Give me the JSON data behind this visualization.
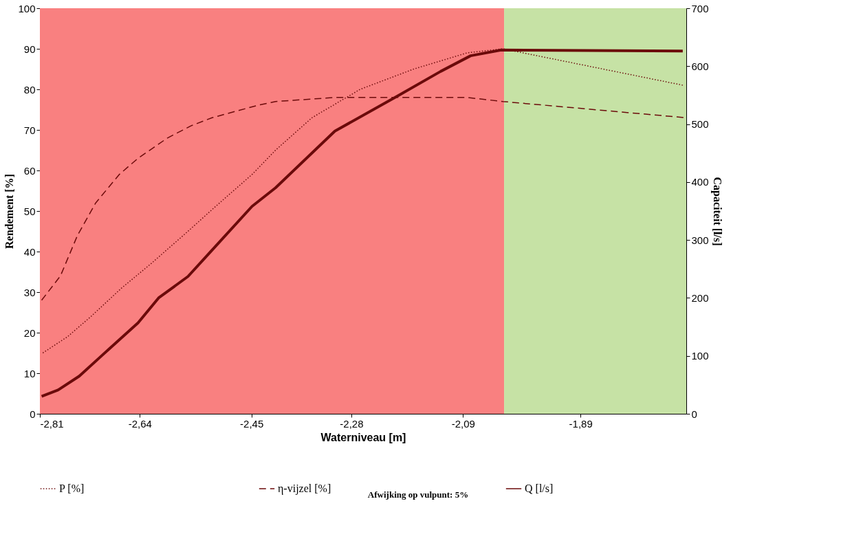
{
  "chart_data": {
    "type": "line",
    "xlabel": "Waterniveau [m]",
    "ylabel": "Rendement [%]",
    "y2label": "Capaciteit [l/s]",
    "xlim": [
      -2.81,
      -1.71
    ],
    "xticks": [
      {
        "value": -2.81,
        "label": "-2,81"
      },
      {
        "value": -2.64,
        "label": "-2,64"
      },
      {
        "value": -2.45,
        "label": "-2,45"
      },
      {
        "value": -2.28,
        "label": "-2,28"
      },
      {
        "value": -2.09,
        "label": "-2,09"
      },
      {
        "value": -1.89,
        "label": "-1,89"
      }
    ],
    "ylim": [
      0,
      100
    ],
    "yticks": [
      0,
      10,
      20,
      30,
      40,
      50,
      60,
      70,
      80,
      90,
      100
    ],
    "y2lim": [
      0,
      700
    ],
    "y2ticks": [
      0,
      100,
      200,
      300,
      400,
      500,
      600,
      700
    ],
    "legend": "bottom",
    "marker": "none",
    "series": [
      {
        "name": "P [%]",
        "color": "#6b0a0a",
        "line_style": "dotted",
        "x": [
          -2.805,
          -2.763,
          -2.723,
          -2.671,
          -2.621,
          -2.558,
          -2.512,
          -2.449,
          -2.409,
          -2.347,
          -2.265,
          -2.174,
          -2.083,
          -2.022,
          -1.715
        ],
        "values": [
          15,
          19,
          24,
          31,
          37,
          45,
          51,
          59,
          65,
          73,
          80,
          85,
          89,
          90,
          81
        ]
      },
      {
        "name": "η-vijzel [%]",
        "color": "#6b0a0a",
        "line_style": "dashed",
        "x": [
          -2.807,
          -2.775,
          -2.746,
          -2.715,
          -2.675,
          -2.643,
          -2.593,
          -2.553,
          -2.517,
          -2.441,
          -2.409,
          -2.308,
          -2.174,
          -2.083,
          -2.022,
          -1.71
        ],
        "values": [
          28,
          34,
          44,
          52,
          59,
          63,
          68,
          71,
          73,
          76,
          77,
          78,
          78,
          78,
          77,
          73
        ]
      },
      {
        "name": "Q [l/s]",
        "color": "#6b0a0a",
        "line_style": "solid",
        "axis": "y2",
        "x": [
          -2.807,
          -2.779,
          -2.743,
          -2.704,
          -2.643,
          -2.608,
          -2.558,
          -2.521,
          -2.449,
          -2.409,
          -2.308,
          -2.202,
          -2.128,
          -2.077,
          -2.025,
          -1.716
        ],
        "values": [
          30,
          41,
          65,
          101,
          157,
          200,
          237,
          278,
          358,
          390,
          488,
          548,
          591,
          618,
          628,
          626
        ]
      }
    ],
    "bands": [
      {
        "axis": "x",
        "from": -2.81,
        "to": -2.02,
        "color": "#f98080"
      },
      {
        "axis": "x",
        "from": -2.02,
        "to": -1.71,
        "color": "#c6e2a5"
      }
    ],
    "annotations": [
      "Afwijking op vulpunt: 5%"
    ]
  }
}
